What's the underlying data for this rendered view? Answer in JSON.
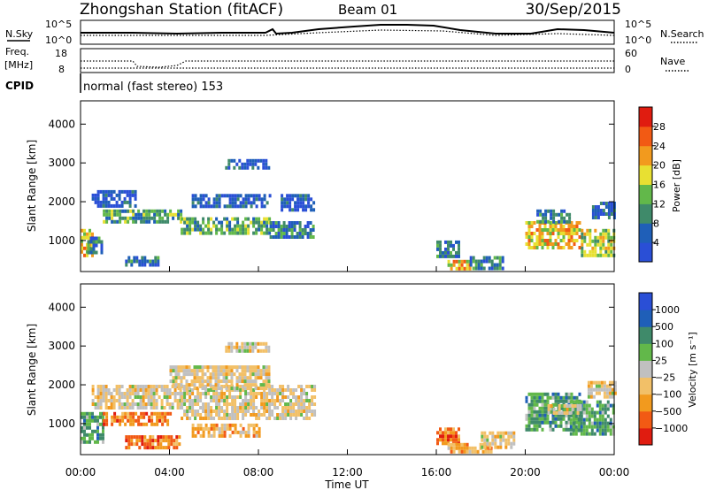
{
  "header": {
    "title": "Zhongshan Station (fitACF)",
    "beam": "Beam 01",
    "date": "30/Sep/2015"
  },
  "summary_panels": {
    "nsky_label": "N.Sky",
    "nsky_ticks": [
      "10^5",
      "10^0"
    ],
    "nsearch_label": "N.Search",
    "nsearch_ticks": [
      "10^5",
      "10^0"
    ],
    "freq_label": "Freq.",
    "freq_unit": "[MHz]",
    "freq_ticks": [
      "18",
      "8"
    ],
    "nave_label": "Nave",
    "nave_ticks": [
      "60",
      "0"
    ],
    "cpid_label": "CPID",
    "cpid_text": "normal (fast stereo) 153"
  },
  "colors": {
    "power": [
      "#2a4fd6",
      "#1f5fb8",
      "#3f8a6a",
      "#62b84a",
      "#e8e032",
      "#f29a1e",
      "#f25a14",
      "#e01c10"
    ],
    "velocity": [
      "#e01c10",
      "#f25a14",
      "#f29a1e",
      "#f2c068",
      "#c0c0c0",
      "#62b84a",
      "#3f8a6a",
      "#1f5fb8",
      "#2a4fd6"
    ]
  },
  "chart_data": [
    {
      "type": "heatmap",
      "name": "power",
      "ylabel": "Slant Range [km]",
      "xlim": [
        "00:00",
        "24:00"
      ],
      "ylim": [
        200,
        4600
      ],
      "yticks": [
        "1000",
        "2000",
        "3000",
        "4000"
      ],
      "colorbar": {
        "label": "Power [dB]",
        "ticks": [
          "4",
          "8",
          "12",
          "16",
          "20",
          "24",
          "28"
        ],
        "range": [
          0,
          32
        ]
      },
      "blocks": [
        {
          "t0": 0.0,
          "t1": 0.5,
          "r0": 600,
          "r1": 1300,
          "v": 22
        },
        {
          "t0": 0.3,
          "t1": 1.0,
          "r0": 700,
          "r1": 1100,
          "v": 10
        },
        {
          "t0": 0.5,
          "t1": 2.5,
          "r0": 1900,
          "r1": 2300,
          "v": 7
        },
        {
          "t0": 1.0,
          "t1": 4.5,
          "r0": 1500,
          "r1": 1800,
          "v": 14
        },
        {
          "t0": 4.5,
          "t1": 8.5,
          "r0": 1200,
          "r1": 1600,
          "v": 12
        },
        {
          "t0": 8.5,
          "t1": 10.5,
          "r0": 1100,
          "r1": 1500,
          "v": 9
        },
        {
          "t0": 5.0,
          "t1": 8.5,
          "r0": 1900,
          "r1": 2200,
          "v": 6
        },
        {
          "t0": 6.5,
          "t1": 8.5,
          "r0": 2900,
          "r1": 3100,
          "v": 4
        },
        {
          "t0": 9.0,
          "t1": 10.5,
          "r0": 1800,
          "r1": 2200,
          "v": 6
        },
        {
          "t0": 2.0,
          "t1": 3.5,
          "r0": 400,
          "r1": 600,
          "v": 10
        },
        {
          "t0": 16.0,
          "t1": 17.0,
          "r0": 600,
          "r1": 1000,
          "v": 8
        },
        {
          "t0": 16.5,
          "t1": 17.5,
          "r0": 300,
          "r1": 500,
          "v": 20
        },
        {
          "t0": 17.5,
          "t1": 19.0,
          "r0": 250,
          "r1": 600,
          "v": 10
        },
        {
          "t0": 20.0,
          "t1": 22.5,
          "r0": 800,
          "r1": 1500,
          "v": 22
        },
        {
          "t0": 22.5,
          "t1": 24.0,
          "r0": 600,
          "r1": 1300,
          "v": 18
        },
        {
          "t0": 20.5,
          "t1": 22.0,
          "r0": 1500,
          "r1": 1800,
          "v": 9
        },
        {
          "t0": 23.0,
          "t1": 24.0,
          "r0": 1600,
          "r1": 2000,
          "v": 6
        }
      ]
    },
    {
      "type": "heatmap",
      "name": "velocity",
      "ylabel": "Slant Range [km]",
      "xlabel": "Time UT",
      "xlim": [
        "00:00",
        "24:00"
      ],
      "ylim": [
        200,
        4600
      ],
      "yticks": [
        "1000",
        "2000",
        "3000",
        "4000"
      ],
      "xticks": [
        "00:00",
        "04:00",
        "08:00",
        "12:00",
        "16:00",
        "20:00",
        "00:00"
      ],
      "colorbar": {
        "label": "Velocity [m s⁻¹]",
        "ticks": [
          "1000",
          "500",
          "100",
          "25",
          "−25",
          "−100",
          "−500",
          "−1000"
        ]
      },
      "blocks": [
        {
          "t0": 0.0,
          "t1": 1.0,
          "r0": 500,
          "r1": 1300,
          "v": 6
        },
        {
          "t0": 0.5,
          "t1": 4.5,
          "r0": 1400,
          "r1": 2000,
          "v": 4
        },
        {
          "t0": 1.0,
          "t1": 4.0,
          "r0": 1000,
          "r1": 1300,
          "v": 2
        },
        {
          "t0": 2.0,
          "t1": 4.5,
          "r0": 400,
          "r1": 700,
          "v": 2
        },
        {
          "t0": 4.5,
          "t1": 10.5,
          "r0": 1100,
          "r1": 2000,
          "v": 4
        },
        {
          "t0": 4.0,
          "t1": 8.5,
          "r0": 1900,
          "r1": 2500,
          "v": 4
        },
        {
          "t0": 6.5,
          "t1": 8.5,
          "r0": 2900,
          "r1": 3100,
          "v": 4
        },
        {
          "t0": 5.0,
          "t1": 8.0,
          "r0": 700,
          "r1": 1000,
          "v": 3
        },
        {
          "t0": 16.0,
          "t1": 17.0,
          "r0": 500,
          "r1": 900,
          "v": 2
        },
        {
          "t0": 16.5,
          "t1": 18.5,
          "r0": 250,
          "r1": 500,
          "v": 3
        },
        {
          "t0": 18.0,
          "t1": 19.5,
          "r0": 400,
          "r1": 800,
          "v": 4
        },
        {
          "t0": 20.0,
          "t1": 22.5,
          "r0": 800,
          "r1": 1800,
          "v": 6
        },
        {
          "t0": 22.0,
          "t1": 24.0,
          "r0": 700,
          "r1": 1600,
          "v": 6
        },
        {
          "t0": 21.0,
          "t1": 22.5,
          "r0": 1300,
          "r1": 1500,
          "v": 4
        },
        {
          "t0": 22.8,
          "t1": 24.0,
          "r0": 1700,
          "r1": 2100,
          "v": 4
        }
      ]
    }
  ]
}
